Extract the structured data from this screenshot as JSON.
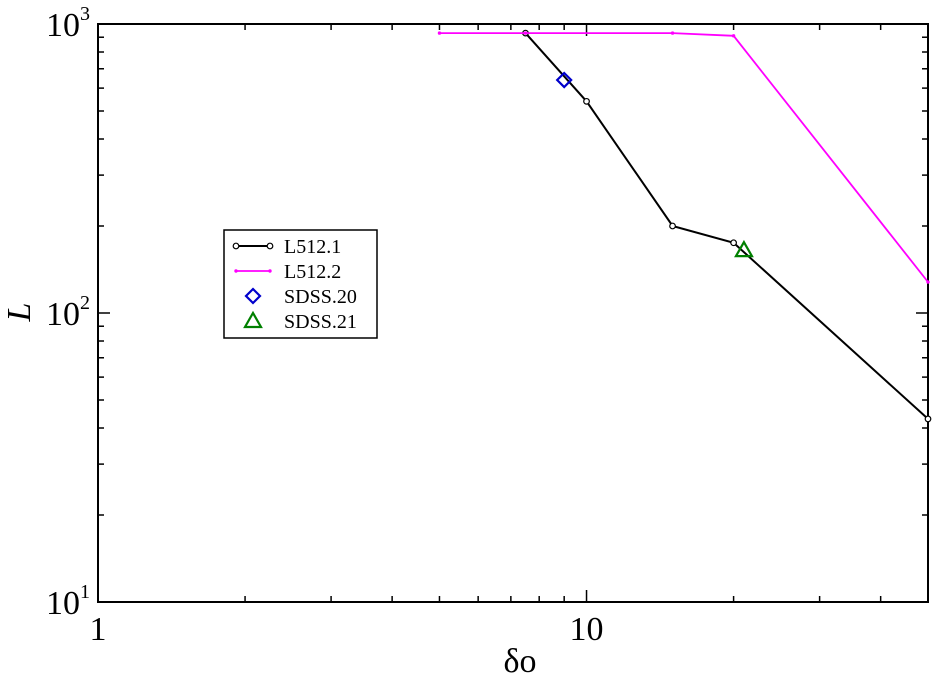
{
  "chart_data": {
    "type": "line",
    "xscale": "log",
    "yscale": "log",
    "xlim": [
      1,
      50
    ],
    "ylim": [
      10,
      1000
    ],
    "xlabel": "δo",
    "ylabel": "L",
    "x_ticks": [
      {
        "value": 1,
        "label": "1"
      },
      {
        "value": 10,
        "label": "10"
      }
    ],
    "y_ticks": [
      {
        "value": 10,
        "base": "10",
        "exp": "1"
      },
      {
        "value": 100,
        "base": "10",
        "exp": "2"
      },
      {
        "value": 1000,
        "base": "10",
        "exp": "3"
      }
    ],
    "grid": false,
    "legend_position": "center-left",
    "series": [
      {
        "name": "L512.1",
        "kind": "line",
        "marker": "circle",
        "color": "#000000",
        "points": [
          [
            7.5,
            930
          ],
          [
            10,
            540
          ],
          [
            15,
            200
          ],
          [
            20,
            175
          ],
          [
            50,
            43
          ]
        ]
      },
      {
        "name": "L512.2",
        "kind": "line",
        "marker": "dot",
        "color": "#ff00ff",
        "points": [
          [
            5,
            930
          ],
          [
            7.5,
            930
          ],
          [
            15,
            930
          ],
          [
            20,
            910
          ],
          [
            50,
            128
          ]
        ]
      },
      {
        "name": "SDSS.20",
        "kind": "scatter",
        "marker": "diamond",
        "color": "#0000cc",
        "points": [
          [
            9,
            640
          ]
        ]
      },
      {
        "name": "SDSS.21",
        "kind": "scatter",
        "marker": "triangle",
        "color": "#008000",
        "points": [
          [
            21,
            165
          ]
        ]
      }
    ]
  }
}
